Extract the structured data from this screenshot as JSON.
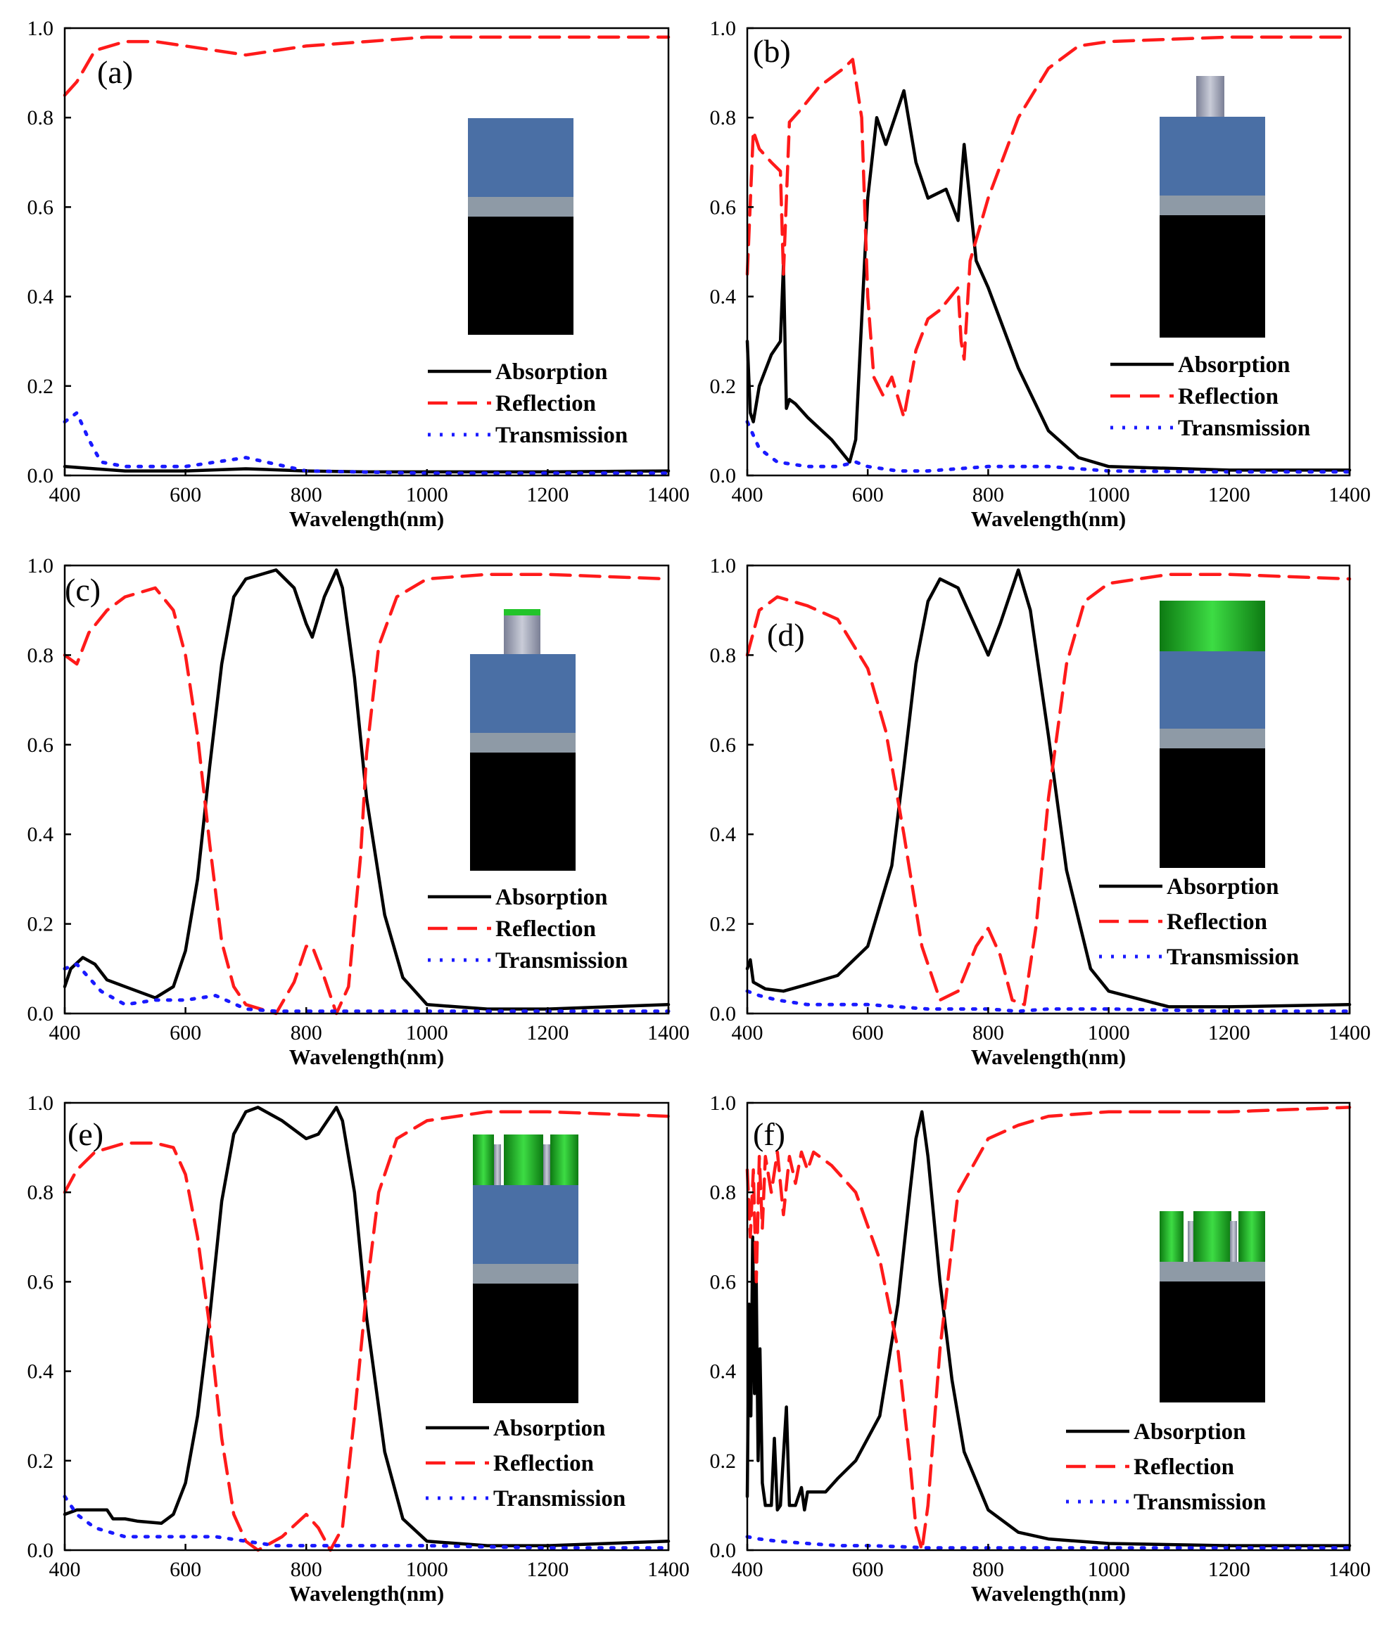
{
  "colors": {
    "absorption": "#000000",
    "reflection": "#ff1a1a",
    "transmission": "#1a1aff",
    "blue_layer": "#4a6fa5",
    "gray_layer": "#8e9aa6",
    "substrate": "#000000",
    "green": "#22b42a"
  },
  "chart_data": [
    {
      "panel": "(a)",
      "type": "line",
      "xlabel": "Wavelength(nm)",
      "ylabel": "",
      "xlim": [
        400,
        1400
      ],
      "ylim": [
        0,
        1.0
      ],
      "xticks": [
        400,
        600,
        800,
        1000,
        1200,
        1400
      ],
      "yticks": [
        0.0,
        0.2,
        0.4,
        0.6,
        0.8,
        1.0
      ],
      "inset": "layers",
      "series": [
        {
          "name": "Absorption",
          "x": [
            400,
            450,
            500,
            600,
            700,
            800,
            900,
            1000,
            1200,
            1400
          ],
          "y": [
            0.02,
            0.015,
            0.01,
            0.01,
            0.015,
            0.01,
            0.008,
            0.008,
            0.008,
            0.01
          ]
        },
        {
          "name": "Reflection",
          "x": [
            400,
            420,
            450,
            500,
            550,
            600,
            650,
            700,
            800,
            900,
            1000,
            1200,
            1400
          ],
          "y": [
            0.85,
            0.88,
            0.95,
            0.97,
            0.97,
            0.96,
            0.95,
            0.94,
            0.96,
            0.97,
            0.98,
            0.98,
            0.98
          ]
        },
        {
          "name": "Transmission",
          "x": [
            400,
            420,
            440,
            460,
            500,
            600,
            700,
            800,
            1000,
            1200,
            1400
          ],
          "y": [
            0.12,
            0.14,
            0.08,
            0.03,
            0.02,
            0.02,
            0.04,
            0.01,
            0.005,
            0.005,
            0.005
          ]
        }
      ]
    },
    {
      "panel": "(b)",
      "type": "line",
      "xlabel": "Wavelength(nm)",
      "ylabel": "",
      "xlim": [
        400,
        1400
      ],
      "ylim": [
        0,
        1.0
      ],
      "xticks": [
        400,
        600,
        800,
        1000,
        1200,
        1400
      ],
      "yticks": [
        0.0,
        0.2,
        0.4,
        0.6,
        0.8,
        1.0
      ],
      "inset": "pillar",
      "series": [
        {
          "name": "Absorption",
          "x": [
            400,
            405,
            410,
            420,
            440,
            455,
            460,
            465,
            470,
            480,
            500,
            540,
            570,
            580,
            600,
            615,
            630,
            660,
            680,
            700,
            730,
            750,
            760,
            780,
            800,
            850,
            900,
            950,
            1000,
            1200,
            1400
          ],
          "y": [
            0.3,
            0.14,
            0.12,
            0.2,
            0.27,
            0.3,
            0.47,
            0.15,
            0.17,
            0.16,
            0.13,
            0.08,
            0.03,
            0.08,
            0.62,
            0.8,
            0.74,
            0.86,
            0.7,
            0.62,
            0.64,
            0.57,
            0.74,
            0.48,
            0.42,
            0.24,
            0.1,
            0.04,
            0.02,
            0.012,
            0.012
          ]
        },
        {
          "name": "Reflection",
          "x": [
            400,
            410,
            420,
            440,
            455,
            460,
            470,
            490,
            520,
            560,
            575,
            590,
            600,
            610,
            625,
            640,
            660,
            680,
            700,
            720,
            750,
            755,
            760,
            770,
            800,
            850,
            900,
            950,
            1000,
            1200,
            1400
          ],
          "y": [
            0.45,
            0.77,
            0.73,
            0.7,
            0.68,
            0.45,
            0.79,
            0.82,
            0.87,
            0.91,
            0.93,
            0.8,
            0.4,
            0.22,
            0.18,
            0.22,
            0.13,
            0.28,
            0.35,
            0.37,
            0.42,
            0.3,
            0.26,
            0.48,
            0.62,
            0.8,
            0.91,
            0.96,
            0.97,
            0.98,
            0.98
          ]
        },
        {
          "name": "Transmission",
          "x": [
            400,
            420,
            450,
            500,
            550,
            580,
            600,
            650,
            700,
            800,
            900,
            1000,
            1200,
            1400
          ],
          "y": [
            0.12,
            0.06,
            0.03,
            0.02,
            0.02,
            0.03,
            0.02,
            0.01,
            0.01,
            0.02,
            0.02,
            0.01,
            0.008,
            0.008
          ]
        }
      ]
    },
    {
      "panel": "(c)",
      "type": "line",
      "xlabel": "Wavelength(nm)",
      "ylabel": "",
      "xlim": [
        400,
        1400
      ],
      "ylim": [
        0,
        1.0
      ],
      "xticks": [
        400,
        600,
        800,
        1000,
        1200,
        1400
      ],
      "yticks": [
        0.0,
        0.2,
        0.4,
        0.6,
        0.8,
        1.0
      ],
      "inset": "pillar-green-cap",
      "series": [
        {
          "name": "Absorption",
          "x": [
            400,
            410,
            430,
            450,
            470,
            500,
            550,
            580,
            600,
            620,
            640,
            660,
            680,
            700,
            750,
            780,
            800,
            810,
            830,
            850,
            860,
            880,
            900,
            930,
            960,
            1000,
            1100,
            1200,
            1400
          ],
          "y": [
            0.06,
            0.1,
            0.125,
            0.11,
            0.075,
            0.06,
            0.035,
            0.06,
            0.14,
            0.3,
            0.55,
            0.78,
            0.93,
            0.97,
            0.99,
            0.95,
            0.87,
            0.84,
            0.93,
            0.99,
            0.95,
            0.75,
            0.48,
            0.22,
            0.08,
            0.02,
            0.01,
            0.01,
            0.02
          ]
        },
        {
          "name": "Reflection",
          "x": [
            400,
            420,
            440,
            470,
            500,
            550,
            580,
            600,
            620,
            640,
            660,
            680,
            700,
            750,
            780,
            800,
            810,
            830,
            850,
            870,
            890,
            900,
            920,
            950,
            1000,
            1100,
            1200,
            1400
          ],
          "y": [
            0.8,
            0.78,
            0.85,
            0.9,
            0.93,
            0.95,
            0.9,
            0.8,
            0.62,
            0.38,
            0.16,
            0.06,
            0.02,
            0.0,
            0.07,
            0.15,
            0.15,
            0.08,
            0.0,
            0.06,
            0.35,
            0.58,
            0.82,
            0.93,
            0.97,
            0.98,
            0.98,
            0.97
          ]
        },
        {
          "name": "Transmission",
          "x": [
            400,
            420,
            440,
            460,
            500,
            550,
            600,
            650,
            700,
            750,
            800,
            900,
            1000,
            1200,
            1400
          ],
          "y": [
            0.1,
            0.11,
            0.08,
            0.05,
            0.02,
            0.03,
            0.03,
            0.04,
            0.01,
            0.005,
            0.005,
            0.005,
            0.005,
            0.005,
            0.005
          ]
        }
      ]
    },
    {
      "panel": "(d)",
      "type": "line",
      "xlabel": "Wavelength(nm)",
      "ylabel": "",
      "xlim": [
        400,
        1400
      ],
      "ylim": [
        0,
        1.0
      ],
      "xticks": [
        400,
        600,
        800,
        1000,
        1200,
        1400
      ],
      "yticks": [
        0.0,
        0.2,
        0.4,
        0.6,
        0.8,
        1.0
      ],
      "inset": "green-top-layer",
      "series": [
        {
          "name": "Absorption",
          "x": [
            400,
            405,
            410,
            430,
            460,
            500,
            550,
            600,
            640,
            660,
            680,
            700,
            720,
            750,
            780,
            800,
            820,
            850,
            870,
            900,
            930,
            970,
            1000,
            1100,
            1200,
            1400
          ],
          "y": [
            0.1,
            0.12,
            0.07,
            0.055,
            0.05,
            0.065,
            0.085,
            0.15,
            0.33,
            0.55,
            0.78,
            0.92,
            0.97,
            0.95,
            0.86,
            0.8,
            0.87,
            0.99,
            0.9,
            0.62,
            0.32,
            0.1,
            0.05,
            0.015,
            0.015,
            0.02
          ]
        },
        {
          "name": "Reflection",
          "x": [
            400,
            420,
            450,
            500,
            550,
            600,
            630,
            660,
            690,
            720,
            750,
            780,
            800,
            820,
            840,
            860,
            880,
            900,
            930,
            960,
            1000,
            1100,
            1200,
            1400
          ],
          "y": [
            0.8,
            0.9,
            0.93,
            0.91,
            0.88,
            0.77,
            0.63,
            0.4,
            0.15,
            0.03,
            0.05,
            0.15,
            0.19,
            0.13,
            0.03,
            0.02,
            0.2,
            0.48,
            0.78,
            0.92,
            0.96,
            0.98,
            0.98,
            0.97
          ]
        },
        {
          "name": "Transmission",
          "x": [
            400,
            420,
            450,
            500,
            550,
            600,
            700,
            800,
            850,
            900,
            1000,
            1200,
            1400
          ],
          "y": [
            0.05,
            0.04,
            0.03,
            0.02,
            0.02,
            0.02,
            0.01,
            0.01,
            0.005,
            0.01,
            0.01,
            0.005,
            0.005
          ]
        }
      ]
    },
    {
      "panel": "(e)",
      "type": "line",
      "xlabel": "Wavelength(nm)",
      "ylabel": "",
      "xlim": [
        400,
        1400
      ],
      "ylim": [
        0,
        1.0
      ],
      "xticks": [
        400,
        600,
        800,
        1000,
        1200,
        1400
      ],
      "yticks": [
        0.0,
        0.2,
        0.4,
        0.6,
        0.8,
        1.0
      ],
      "inset": "green-grating-on-layers",
      "series": [
        {
          "name": "Absorption",
          "x": [
            400,
            420,
            450,
            470,
            480,
            500,
            520,
            560,
            580,
            600,
            620,
            640,
            660,
            680,
            700,
            720,
            760,
            800,
            820,
            850,
            860,
            880,
            900,
            930,
            960,
            1000,
            1100,
            1200,
            1400
          ],
          "y": [
            0.08,
            0.09,
            0.09,
            0.09,
            0.07,
            0.07,
            0.065,
            0.06,
            0.08,
            0.15,
            0.3,
            0.52,
            0.78,
            0.93,
            0.98,
            0.99,
            0.96,
            0.92,
            0.93,
            0.99,
            0.96,
            0.8,
            0.52,
            0.22,
            0.07,
            0.02,
            0.01,
            0.01,
            0.02
          ]
        },
        {
          "name": "Reflection",
          "x": [
            400,
            420,
            450,
            500,
            550,
            580,
            600,
            620,
            640,
            660,
            680,
            700,
            720,
            760,
            800,
            820,
            840,
            860,
            880,
            900,
            920,
            950,
            1000,
            1100,
            1200,
            1400
          ],
          "y": [
            0.8,
            0.85,
            0.89,
            0.91,
            0.91,
            0.9,
            0.84,
            0.7,
            0.5,
            0.25,
            0.08,
            0.02,
            0.0,
            0.03,
            0.08,
            0.05,
            0.0,
            0.05,
            0.3,
            0.58,
            0.8,
            0.92,
            0.96,
            0.98,
            0.98,
            0.97
          ]
        },
        {
          "name": "Transmission",
          "x": [
            400,
            420,
            450,
            500,
            550,
            600,
            650,
            700,
            750,
            800,
            900,
            1000,
            1200,
            1400
          ],
          "y": [
            0.12,
            0.08,
            0.05,
            0.03,
            0.03,
            0.03,
            0.03,
            0.02,
            0.01,
            0.01,
            0.01,
            0.01,
            0.005,
            0.005
          ]
        }
      ]
    },
    {
      "panel": "(f)",
      "type": "line",
      "xlabel": "Wavelength(nm)",
      "ylabel": "",
      "xlim": [
        400,
        1400
      ],
      "ylim": [
        0,
        1.0
      ],
      "xticks": [
        400,
        600,
        800,
        1000,
        1200,
        1400
      ],
      "yticks": [
        0.0,
        0.2,
        0.4,
        0.6,
        0.8,
        1.0
      ],
      "inset": "green-grating-on-substrate",
      "series": [
        {
          "name": "Absorption",
          "x": [
            400,
            403,
            406,
            409,
            412,
            415,
            418,
            421,
            425,
            430,
            440,
            445,
            450,
            455,
            465,
            470,
            480,
            490,
            495,
            500,
            510,
            530,
            550,
            580,
            620,
            650,
            670,
            680,
            690,
            700,
            720,
            740,
            760,
            800,
            850,
            900,
            1000,
            1200,
            1400
          ],
          "y": [
            0.12,
            0.55,
            0.3,
            0.7,
            0.35,
            0.6,
            0.2,
            0.45,
            0.15,
            0.1,
            0.1,
            0.25,
            0.09,
            0.1,
            0.32,
            0.1,
            0.1,
            0.14,
            0.09,
            0.13,
            0.13,
            0.13,
            0.16,
            0.2,
            0.3,
            0.55,
            0.8,
            0.92,
            0.98,
            0.88,
            0.6,
            0.38,
            0.22,
            0.09,
            0.04,
            0.025,
            0.015,
            0.01,
            0.01
          ]
        },
        {
          "name": "Reflection",
          "x": [
            400,
            405,
            410,
            415,
            420,
            425,
            430,
            440,
            450,
            460,
            470,
            480,
            490,
            500,
            510,
            540,
            580,
            620,
            650,
            670,
            680,
            690,
            700,
            720,
            750,
            800,
            850,
            900,
            1000,
            1200,
            1400
          ],
          "y": [
            0.85,
            0.7,
            0.85,
            0.6,
            0.88,
            0.72,
            0.88,
            0.8,
            0.89,
            0.75,
            0.88,
            0.82,
            0.89,
            0.85,
            0.89,
            0.86,
            0.8,
            0.65,
            0.45,
            0.2,
            0.05,
            0.0,
            0.1,
            0.45,
            0.8,
            0.92,
            0.95,
            0.97,
            0.98,
            0.98,
            0.99
          ]
        },
        {
          "name": "Transmission",
          "x": [
            400,
            420,
            450,
            500,
            550,
            600,
            650,
            700,
            800,
            1000,
            1200,
            1400
          ],
          "y": [
            0.03,
            0.025,
            0.02,
            0.015,
            0.01,
            0.01,
            0.008,
            0.005,
            0.005,
            0.005,
            0.005,
            0.005
          ]
        }
      ]
    }
  ]
}
